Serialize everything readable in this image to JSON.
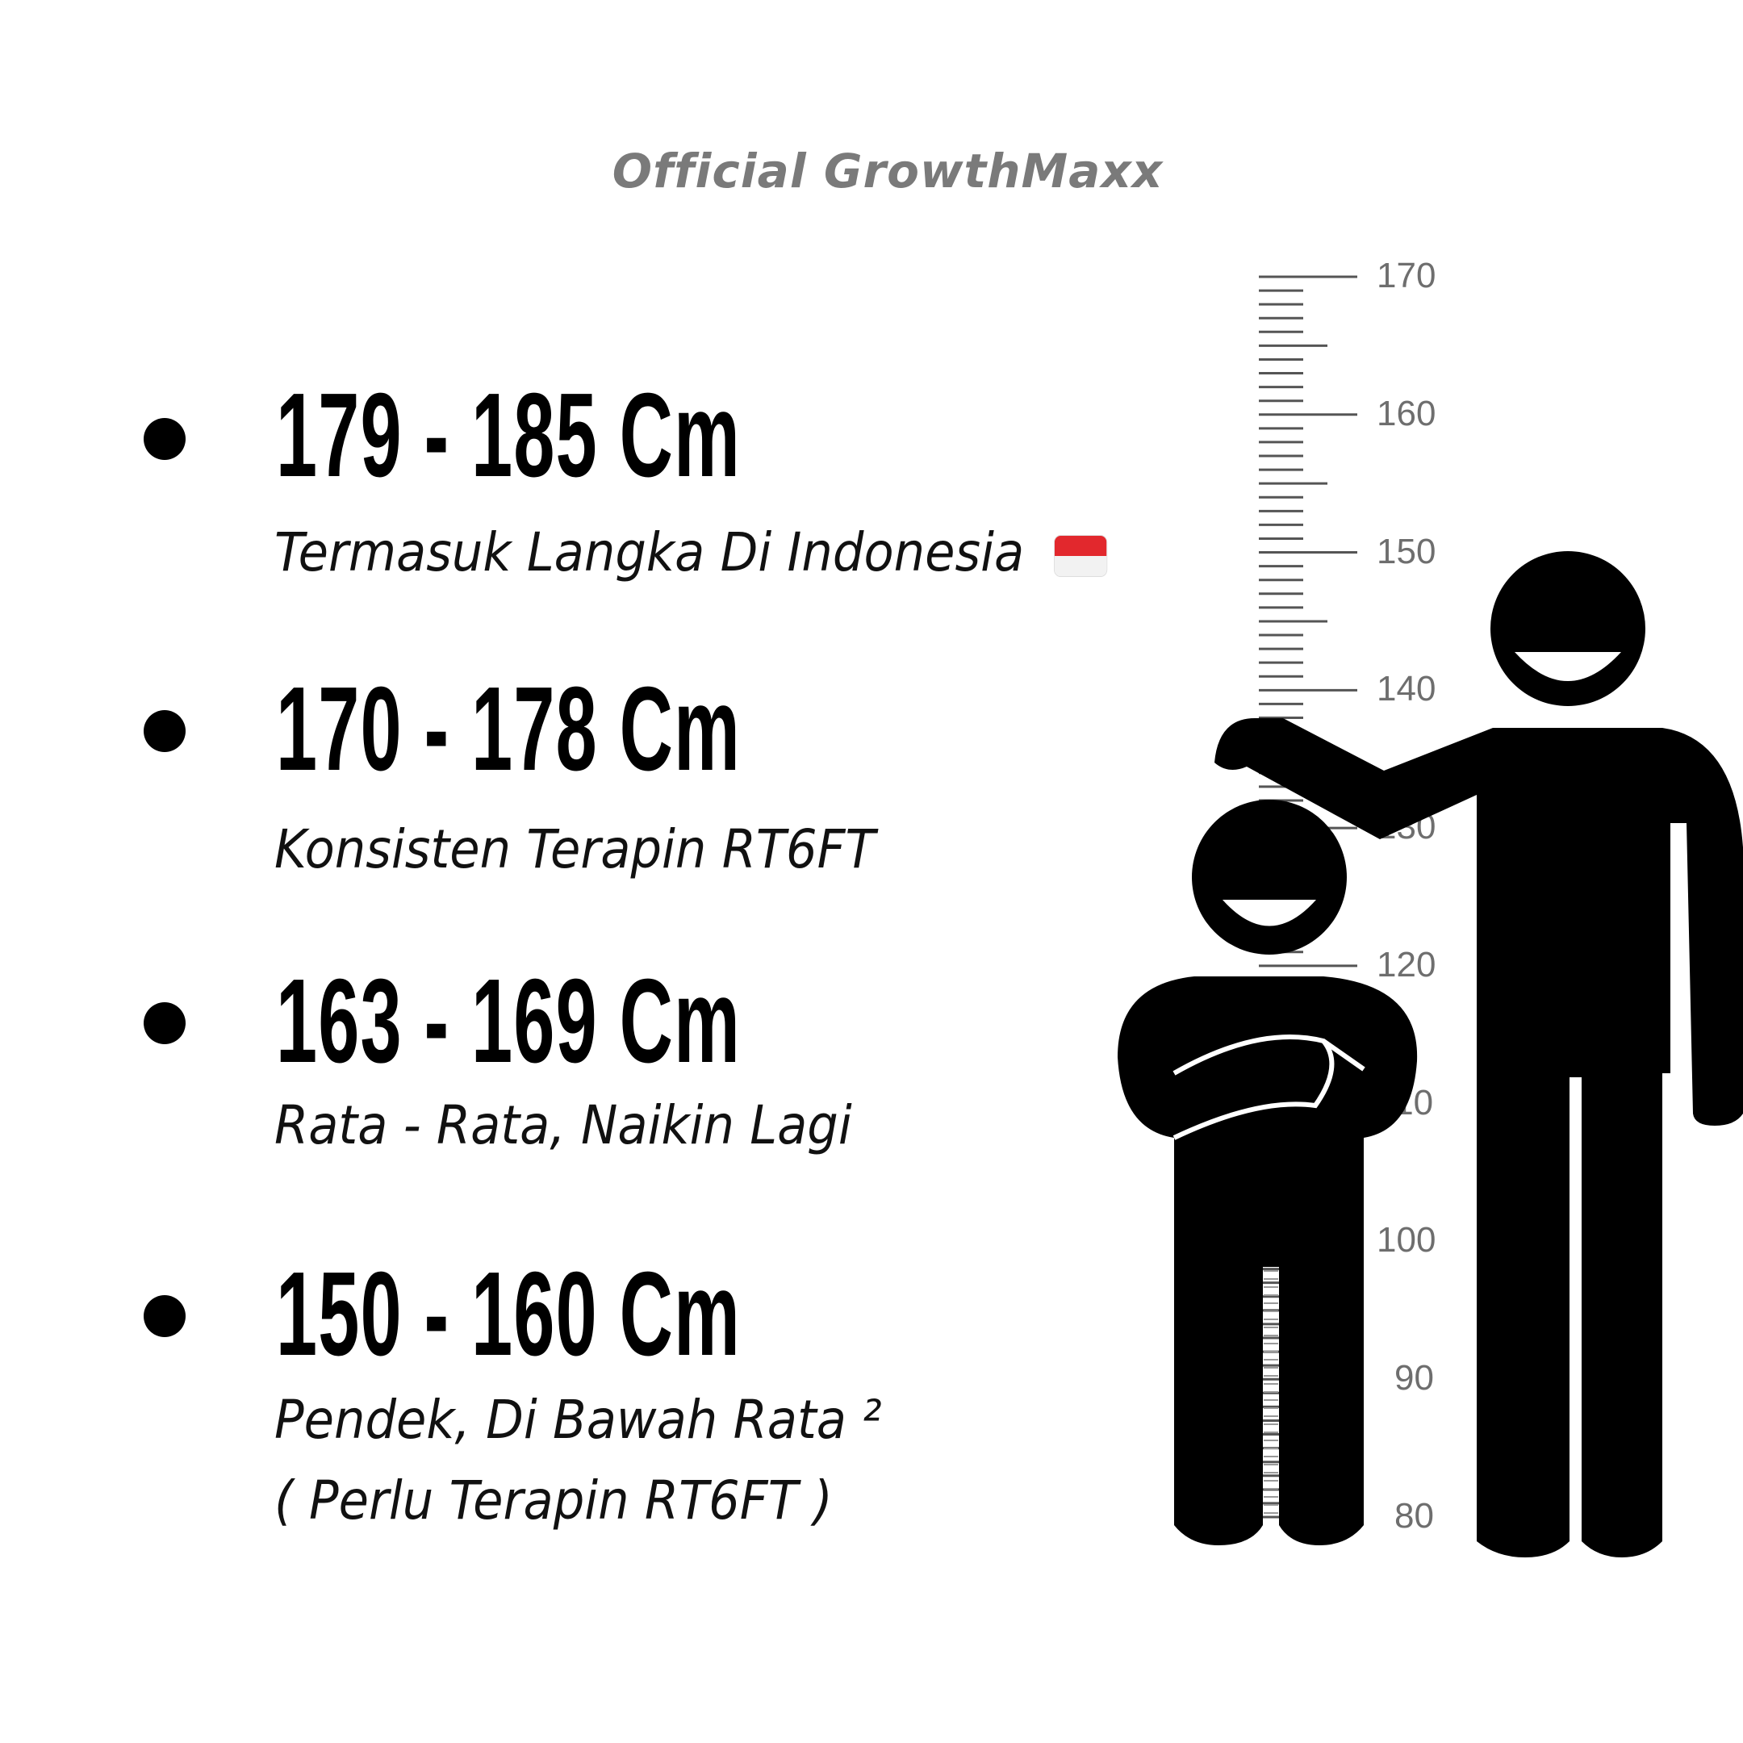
{
  "brand": "Official GrowthMaxx",
  "entries": [
    {
      "range": "179 - 185 Cm",
      "desc": "Termasuk Langka Di Indonesia",
      "flag_icon": "indonesia-flag-icon"
    },
    {
      "range": "170 - 178 Cm",
      "desc": "Konsisten Terapin RT6FT"
    },
    {
      "range": "163 - 169 Cm",
      "desc": "Rata - Rata, Naikin Lagi"
    },
    {
      "range": "150 - 160 Cm",
      "desc_line1": "Pendek, Di Bawah Rata ²",
      "desc_line2": "( Perlu Terapin RT6FT )"
    }
  ],
  "ruler": {
    "labels": [
      "170",
      "160",
      "150",
      "140",
      "130",
      "120",
      "110",
      "100",
      "90",
      "80"
    ],
    "units": "cm"
  },
  "colors": {
    "text": "#000000",
    "brand": "#7a7a7a",
    "ruler": "#6e6e6e",
    "flag_red": "#e2282d"
  }
}
